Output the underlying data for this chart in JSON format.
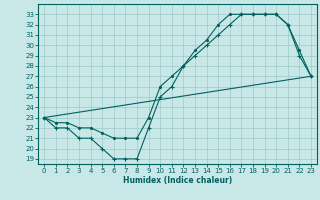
{
  "xlabel": "Humidex (Indice chaleur)",
  "bg_color": "#c8e8e8",
  "grid_color": "#a0c8c8",
  "line_color": "#006060",
  "xlim": [
    -0.5,
    23.5
  ],
  "ylim": [
    18.5,
    34.0
  ],
  "xticks": [
    0,
    1,
    2,
    3,
    4,
    5,
    6,
    7,
    8,
    9,
    10,
    11,
    12,
    13,
    14,
    15,
    16,
    17,
    18,
    19,
    20,
    21,
    22,
    23
  ],
  "yticks": [
    19,
    20,
    21,
    22,
    23,
    24,
    25,
    26,
    27,
    28,
    29,
    30,
    31,
    32,
    33
  ],
  "line1_x": [
    0,
    1,
    2,
    3,
    4,
    5,
    6,
    7,
    8,
    9,
    10,
    11,
    12,
    13,
    14,
    15,
    16,
    17,
    18,
    19,
    20,
    21,
    22,
    23
  ],
  "line1_y": [
    23,
    22,
    22,
    21,
    21,
    20,
    19,
    19,
    19,
    22,
    25,
    26,
    28,
    29,
    30,
    31,
    32,
    33,
    33,
    33,
    33,
    32,
    29,
    27
  ],
  "line2_x": [
    0,
    1,
    2,
    3,
    4,
    5,
    6,
    7,
    8,
    9,
    10,
    11,
    12,
    13,
    14,
    15,
    16,
    17,
    18,
    19,
    20,
    21,
    22,
    23
  ],
  "line2_y": [
    23,
    22.5,
    22.5,
    22,
    22,
    21.5,
    21,
    21,
    21,
    23,
    26,
    27,
    28,
    29.5,
    30.5,
    32,
    33,
    33,
    33,
    33,
    33,
    32,
    29.5,
    27
  ],
  "line3_x": [
    0,
    23
  ],
  "line3_y": [
    23,
    27
  ]
}
